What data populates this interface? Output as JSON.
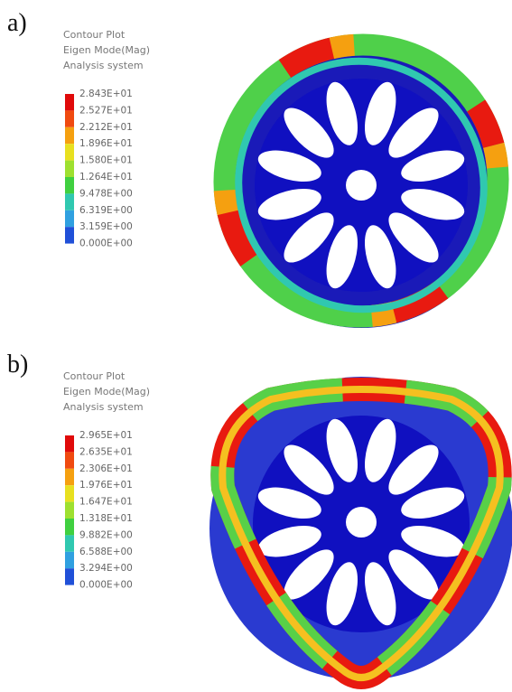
{
  "panels": [
    {
      "label": "a)",
      "legend": {
        "title": [
          "Contour Plot",
          "Eigen Mode(Mag)",
          "Analysis system"
        ],
        "levels": [
          "2.843E+01",
          "2.527E+01",
          "2.212E+01",
          "1.896E+01",
          "1.580E+01",
          "1.264E+01",
          "9.478E+00",
          "6.319E+00",
          "3.159E+00",
          "0.000E+00"
        ]
      }
    },
    {
      "label": "b)",
      "legend": {
        "title": [
          "Contour Plot",
          "Eigen Mode(Mag)",
          "Analysis system"
        ],
        "levels": [
          "2.965E+01",
          "2.635E+01",
          "2.306E+01",
          "1.976E+01",
          "1.647E+01",
          "1.318E+01",
          "9.882E+00",
          "6.588E+00",
          "3.294E+00",
          "0.000E+00"
        ]
      }
    }
  ]
}
